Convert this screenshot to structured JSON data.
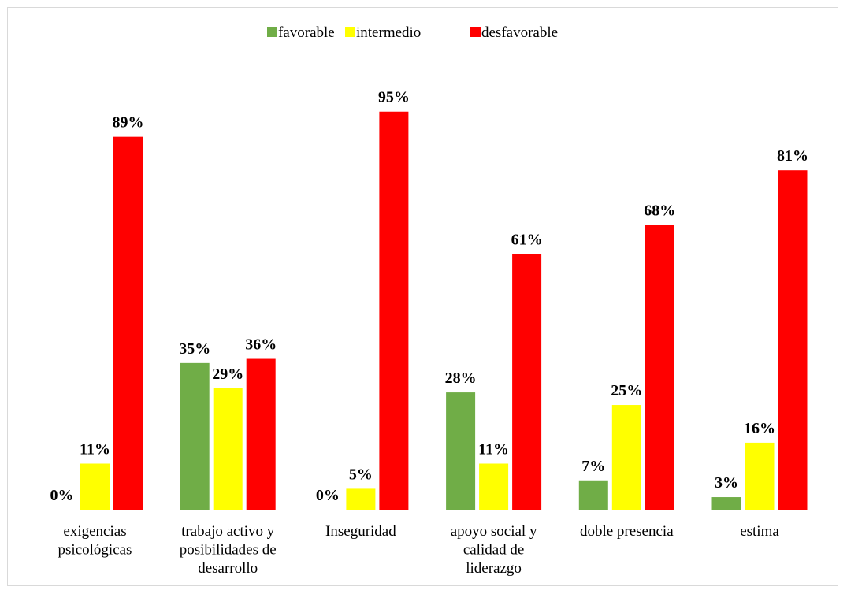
{
  "chart_data": {
    "type": "bar",
    "title": "",
    "xlabel": "",
    "ylabel": "",
    "ylim": [
      0,
      100
    ],
    "grid": false,
    "legend_position": "top-center",
    "categories": [
      [
        "exigencias",
        "psicológicas"
      ],
      [
        "trabajo activo y",
        "posibilidades de",
        "desarrollo"
      ],
      [
        "Inseguridad"
      ],
      [
        "apoyo social y",
        "calidad de",
        "liderazgo"
      ],
      [
        "doble presencia"
      ],
      [
        "estima"
      ]
    ],
    "series": [
      {
        "name": "favorable",
        "color": "#70ad47",
        "values": [
          0,
          35,
          0,
          28,
          7,
          3
        ],
        "labels": [
          "0%",
          "35%",
          "0%",
          "28%",
          "7%",
          "3%"
        ]
      },
      {
        "name": "intermedio",
        "color": "#ffff00",
        "values": [
          11,
          29,
          5,
          11,
          25,
          16
        ],
        "labels": [
          "11%",
          "29%",
          "5%",
          "11%",
          "25%",
          "16%"
        ]
      },
      {
        "name": "desfavorable",
        "color": "#ff0000",
        "values": [
          89,
          36,
          95,
          61,
          68,
          81
        ],
        "labels": [
          "89%",
          "36%",
          "95%",
          "61%",
          "68%",
          "81%"
        ]
      }
    ]
  }
}
